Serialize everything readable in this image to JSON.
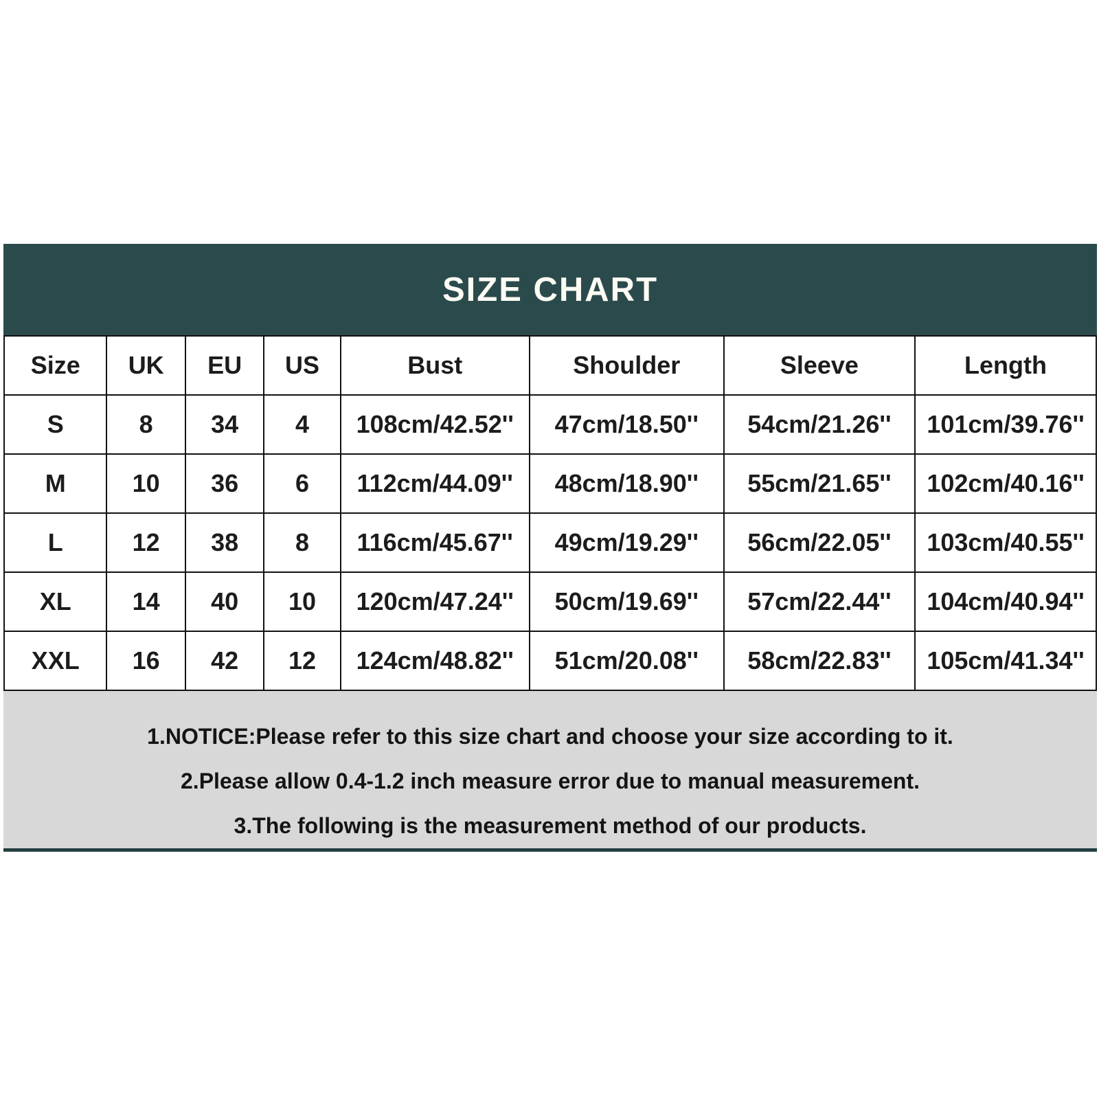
{
  "title_bar": {
    "title": "SIZE CHART"
  },
  "chart_data": {
    "type": "table",
    "title": "SIZE CHART",
    "columns": [
      "Size",
      "UK",
      "EU",
      "US",
      "Bust",
      "Shoulder",
      "Sleeve",
      "Length"
    ],
    "rows": [
      [
        "S",
        "8",
        "34",
        "4",
        "108cm/42.52''",
        "47cm/18.50''",
        "54cm/21.26''",
        "101cm/39.76''"
      ],
      [
        "M",
        "10",
        "36",
        "6",
        "112cm/44.09''",
        "48cm/18.90''",
        "55cm/21.65''",
        "102cm/40.16''"
      ],
      [
        "L",
        "12",
        "38",
        "8",
        "116cm/45.67''",
        "49cm/19.29''",
        "56cm/22.05''",
        "103cm/40.55''"
      ],
      [
        "XL",
        "14",
        "40",
        "10",
        "120cm/47.24''",
        "50cm/19.69''",
        "57cm/22.44''",
        "104cm/40.94''"
      ],
      [
        "XXL",
        "16",
        "42",
        "12",
        "124cm/48.82''",
        "51cm/20.08''",
        "58cm/22.83''",
        "105cm/41.34''"
      ]
    ]
  },
  "notice": {
    "lines": [
      "1.NOTICE:Please refer to this size chart and choose your size according to it.",
      "2.Please allow 0.4-1.2 inch measure error due to manual measurement.",
      "3.The following is the measurement method of our products."
    ]
  },
  "colors": {
    "header_teal": "#2b4a4c",
    "notice_grey": "#d8d8d8",
    "bottom_rule": "#233f41",
    "table_border": "#121212"
  }
}
